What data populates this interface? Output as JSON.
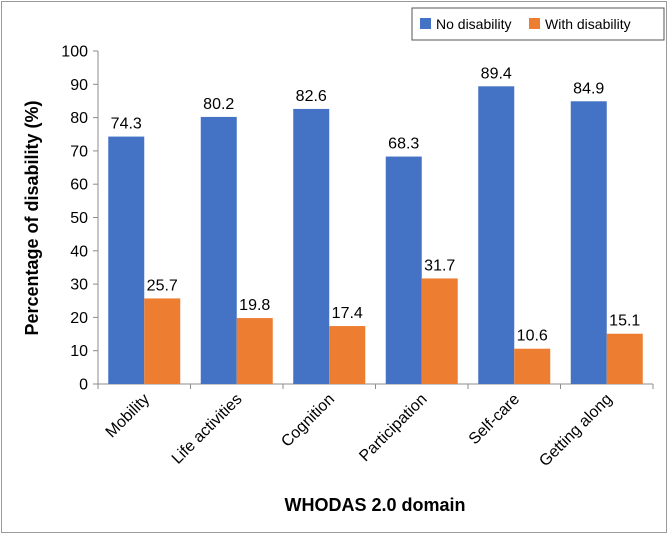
{
  "chart_data": {
    "type": "bar",
    "title": "",
    "xlabel": "WHODAS 2.0 domain",
    "ylabel": "Percentage of disability (%)",
    "ylim": [
      0,
      100
    ],
    "ytick_step": 10,
    "grid": false,
    "legend_position": "top-right",
    "categories": [
      "Mobility",
      "Life activities",
      "Cognition",
      "Participation",
      "Self-care",
      "Getting along"
    ],
    "series": [
      {
        "name": "No disability",
        "color": "#4472C4",
        "values": [
          74.3,
          80.2,
          82.6,
          68.3,
          89.4,
          84.9
        ]
      },
      {
        "name": "With disability",
        "color": "#ED7D31",
        "values": [
          25.7,
          19.8,
          17.4,
          31.7,
          10.6,
          15.1
        ]
      }
    ]
  }
}
